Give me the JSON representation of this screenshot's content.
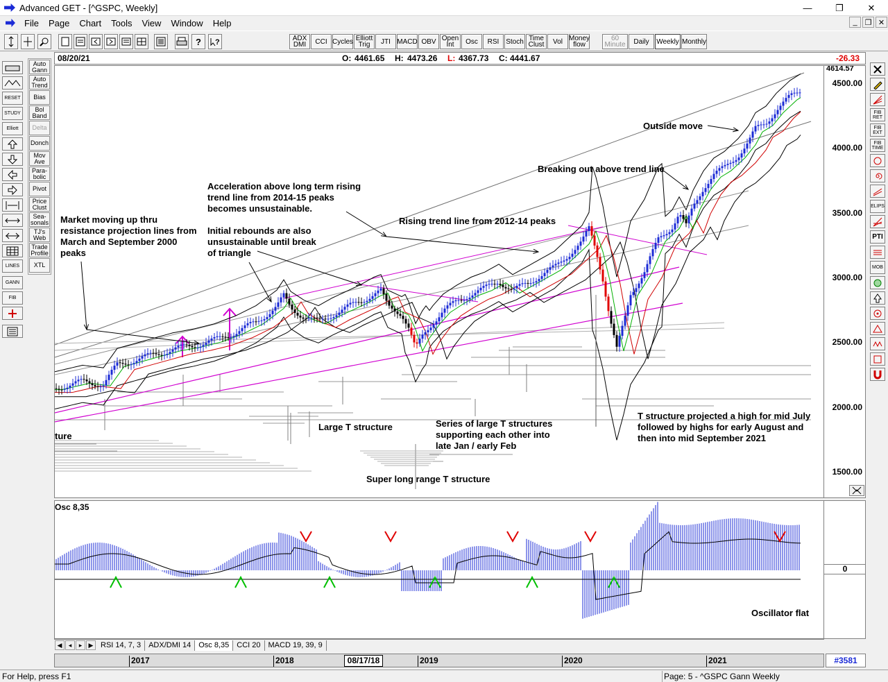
{
  "window": {
    "title": "Advanced GET - [^GSPC, Weekly]",
    "minimize": "—",
    "restore": "❐",
    "close": "✕",
    "mdi_minimize": "_",
    "mdi_restore": "❐",
    "mdi_close": "✕"
  },
  "menu": [
    "File",
    "Page",
    "Chart",
    "Tools",
    "View",
    "Window",
    "Help"
  ],
  "toolbar": {
    "indicators": [
      "ADX DMI",
      "CCI",
      "Cycles",
      "Elliott Trig",
      "JTI",
      "MACD",
      "OBV",
      "Open Int",
      "Osc",
      "RSI",
      "Stoch",
      "Time Clust",
      "Vol",
      "Money flow"
    ],
    "periods": [
      "60 Minute",
      "Daily",
      "Weekly",
      "Monthly"
    ],
    "active_period": "Weekly"
  },
  "left_tools": [
    "Auto Gann",
    "Auto Trend",
    "Bias",
    "Bol Band",
    "Delta",
    "Donch",
    "Mov Ave",
    "Para-bolic",
    "Pivot",
    "Price Clust",
    "Sea-sonals",
    "TJ's Web",
    "Trade Profile",
    "XTL"
  ],
  "left_icons": [
    "RESET",
    "STUDY",
    "Elliott",
    "LINES",
    "GANN",
    "FIB"
  ],
  "right_tools": [
    "FIB RET",
    "FIB EXT",
    "FIB TIME",
    "ELIPS",
    "PTI",
    "MOB"
  ],
  "chart_header": {
    "date": "08/20/21",
    "open_label": "O:",
    "open": "4461.65",
    "high_label": "H:",
    "high": "4473.26",
    "low_label": "L:",
    "low": "4367.73",
    "close_label": "C:",
    "close": "4441.67",
    "change": "-26.33"
  },
  "price_scale": {
    "top_value": "4614.57",
    "ticks": [
      "4500.00",
      "4000.00",
      "3500.00",
      "3000.00",
      "2500.00",
      "2000.00",
      "1500.00"
    ]
  },
  "annotations": {
    "market_moving": [
      "Market moving up thru",
      "resistance projection lines from",
      "March and September 2000",
      "peaks"
    ],
    "acceleration": [
      "Acceleration above long term rising",
      "trend line from 2014-15 peaks",
      "becomes unsustainable."
    ],
    "initial_rebounds": [
      "Initial rebounds are also",
      "unsustainable until break",
      "of triangle"
    ],
    "rising_trend": "Rising trend line from 2012-14 peaks",
    "breaking_out": "Breaking out above trend line",
    "outside_move": "Outside move",
    "large_t": "Large T structure",
    "series_t": [
      "Series of large T structures",
      "supporting each other into",
      "late Jan / early Feb"
    ],
    "super_long": "Super long range T structure",
    "t_projected": [
      "T structure projected a high for mid July",
      "followed by highs for early August and",
      "then into mid September 2021"
    ],
    "ture": "ture"
  },
  "oscillator": {
    "title": "Osc 8,35",
    "zero_label": "0",
    "note": "Oscillator flat"
  },
  "tabs": [
    "RSI 14, 7, 3",
    "ADX/DMI 14",
    "Osc 8,35",
    "CCI 20",
    "MACD 19, 39, 9"
  ],
  "active_tab": "Osc 8,35",
  "time_axis": {
    "years": [
      "2017",
      "2018",
      "2019",
      "2020",
      "2021"
    ],
    "cursor_date": "08/17/18"
  },
  "bar_count": "#3581",
  "status": {
    "help": "For Help, press F1",
    "page": "Page: 5 - ^GSPC Gann Weekly"
  },
  "colors": {
    "up_bar": "#1b2bd6",
    "down_bar": "#000000",
    "drop_bar": "#e00000",
    "magenta": "#d000d0",
    "green_ma": "#00b000",
    "red_ma": "#d00000",
    "sell_arrow": "#e00000",
    "buy_arrow": "#00c000",
    "change_negative": "#e00000"
  }
}
